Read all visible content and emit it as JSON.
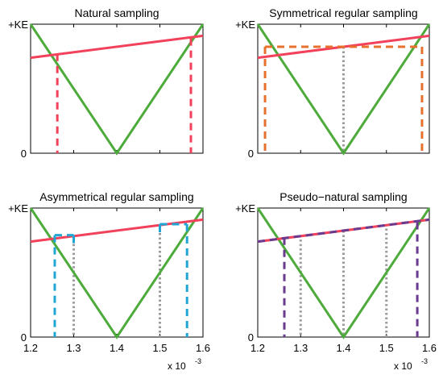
{
  "figure": {
    "colors": {
      "carrier": "#4cab3a",
      "reference": "#f2415a",
      "sample": "#9a9a9a",
      "natural_pulse": "#f2415a",
      "symmetric_pulse": "#e8702d",
      "asymmetric_pulse": "#21a6d4",
      "pseudo_pulse": "#6a3a8f"
    }
  },
  "chart_data": [
    {
      "type": "line",
      "title": "Natural sampling",
      "xlim": [
        1.2,
        1.6
      ],
      "x_ticks": [],
      "x_multiplier": "",
      "y_ticks": [
        "0",
        "+KE"
      ],
      "ylim": [
        0,
        1
      ],
      "series": [
        {
          "role": "carrier",
          "style": "solid",
          "x": [
            1.2,
            1.4,
            1.6
          ],
          "y": [
            1,
            0,
            1
          ]
        },
        {
          "role": "reference",
          "style": "solid",
          "x": [
            1.2,
            1.6
          ],
          "y": [
            0.74,
            0.91
          ]
        }
      ],
      "pulse_edges": [
        {
          "x": 1.262,
          "y_top": 0.77,
          "y_bottom": 0
        },
        {
          "x": 1.572,
          "y_top": 0.89,
          "y_bottom": 0
        }
      ],
      "pulse_top": null,
      "sample_lines": []
    },
    {
      "type": "line",
      "title": "Symmetrical regular sampling",
      "xlim": [
        1.2,
        1.6
      ],
      "x_ticks": [],
      "x_multiplier": "",
      "y_ticks": [
        "0",
        "+KE"
      ],
      "ylim": [
        0,
        1
      ],
      "series": [
        {
          "role": "carrier",
          "style": "solid",
          "x": [
            1.2,
            1.4,
            1.6
          ],
          "y": [
            1,
            0,
            1
          ]
        },
        {
          "role": "reference",
          "style": "solid",
          "x": [
            1.2,
            1.6
          ],
          "y": [
            0.74,
            0.91
          ]
        }
      ],
      "pulse_edges": [
        {
          "x": 1.217,
          "y_top": 0.825,
          "y_bottom": 0
        },
        {
          "x": 1.583,
          "y_top": 0.825,
          "y_bottom": 0
        }
      ],
      "pulse_top": {
        "x1": 1.217,
        "x2": 1.583,
        "y": 0.825
      },
      "sample_lines": [
        {
          "x": 1.4,
          "y_top": 0.825
        }
      ]
    },
    {
      "type": "line",
      "title": "Asymmetrical regular sampling",
      "xlim": [
        1.2,
        1.6
      ],
      "x_ticks": [
        "1.2",
        "1.3",
        "1.4",
        "1.5",
        "1.6"
      ],
      "x_multiplier": "x 10",
      "x_multiplier_exp": "-3",
      "y_ticks": [
        "0",
        "+KE"
      ],
      "ylim": [
        0,
        1
      ],
      "series": [
        {
          "role": "carrier",
          "style": "solid",
          "x": [
            1.2,
            1.4,
            1.6
          ],
          "y": [
            1,
            0,
            1
          ]
        },
        {
          "role": "reference",
          "style": "solid",
          "x": [
            1.2,
            1.6
          ],
          "y": [
            0.74,
            0.91
          ]
        }
      ],
      "pulse_edges": [
        {
          "x": 1.256,
          "y_top": 0.79,
          "y_bottom": 0
        },
        {
          "x": 1.563,
          "y_top": 0.875,
          "y_bottom": 0
        }
      ],
      "pulse_steps": [
        {
          "x1": 1.256,
          "x2": 1.3,
          "y": 0.79,
          "side": "right"
        },
        {
          "x1": 1.5,
          "x2": 1.563,
          "y": 0.875,
          "side": "left"
        }
      ],
      "pulse_top": null,
      "sample_lines": [
        {
          "x": 1.3,
          "y_top": 0.79
        },
        {
          "x": 1.5,
          "y_top": 0.875
        }
      ]
    },
    {
      "type": "line",
      "title": "Pseudo−natural sampling",
      "xlim": [
        1.2,
        1.6
      ],
      "x_ticks": [
        "1.2",
        "1.3",
        "1.4",
        "1.5",
        "1.6"
      ],
      "x_multiplier": "x 10",
      "x_multiplier_exp": "-3",
      "y_ticks": [
        "0",
        "+KE"
      ],
      "ylim": [
        0,
        1
      ],
      "series": [
        {
          "role": "carrier",
          "style": "solid",
          "x": [
            1.2,
            1.4,
            1.6
          ],
          "y": [
            1,
            0,
            1
          ]
        },
        {
          "role": "reference",
          "style": "solid",
          "x": [
            1.2,
            1.6
          ],
          "y": [
            0.74,
            0.91
          ]
        },
        {
          "role": "pseudo_reference",
          "style": "dashed",
          "x": [
            1.2,
            1.6
          ],
          "y": [
            0.74,
            0.91
          ]
        }
      ],
      "pulse_edges": [
        {
          "x": 1.262,
          "y_top": 0.77,
          "y_bottom": 0
        },
        {
          "x": 1.572,
          "y_top": 0.89,
          "y_bottom": 0
        }
      ],
      "pulse_top": null,
      "sample_lines": [
        {
          "x": 1.3,
          "y_top": 0.79
        },
        {
          "x": 1.4,
          "y_top": 0.825
        },
        {
          "x": 1.5,
          "y_top": 0.875
        }
      ]
    }
  ]
}
